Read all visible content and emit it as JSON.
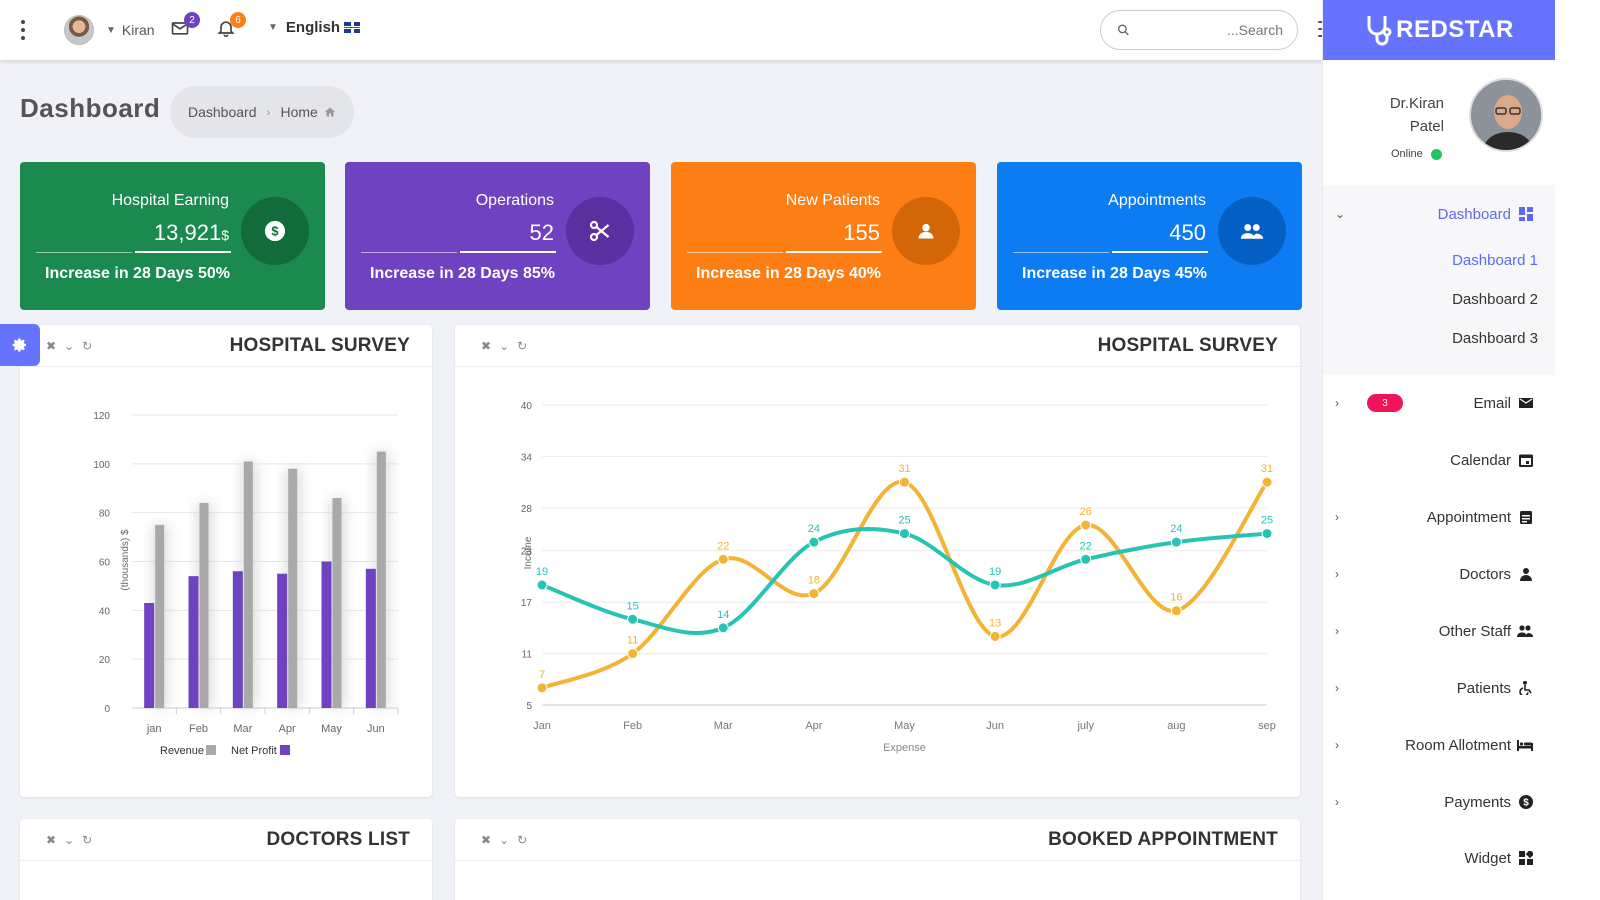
{
  "topbar": {
    "user_name": "Kiran",
    "mail_count": "2",
    "notif_count": "6",
    "language": "English",
    "search_placeholder": "...Search"
  },
  "brand": {
    "name": "REDSTAR",
    "color": "#6673fd"
  },
  "page": {
    "title": "Dashboard",
    "crumb1": "Dashboard",
    "crumb2": "Home"
  },
  "stats": [
    {
      "label": "Hospital Earning",
      "value": "13,921",
      "unit": "$",
      "footer": "Increase in 28 Days 50%",
      "color": "#1a8a4e",
      "icon": "dollar-icon"
    },
    {
      "label": "Operations",
      "value": "52",
      "unit": "",
      "footer": "Increase in 28 Days 85%",
      "color": "#6f42c1",
      "icon": "scissors-icon"
    },
    {
      "label": "New Patients",
      "value": "155",
      "unit": "",
      "footer": "Increase in 28 Days 40%",
      "color": "#fd7e14",
      "icon": "user-icon"
    },
    {
      "label": "Appointments",
      "value": "450",
      "unit": "",
      "footer": "Increase in 28 Days 45%",
      "color": "#0d7cf2",
      "icon": "users-icon"
    }
  ],
  "panels": {
    "survey_bar": "HOSPITAL SURVEY",
    "survey_line": "HOSPITAL SURVEY",
    "doctors": "DOCTORS LIST",
    "appointments": "BOOKED APPOINTMENT"
  },
  "chart_data": [
    {
      "type": "bar",
      "categories": [
        "jan",
        "Feb",
        "Mar",
        "Apr",
        "May",
        "Jun"
      ],
      "series": [
        {
          "name": "Revenue",
          "values": [
            75,
            84,
            101,
            98,
            86,
            105
          ],
          "color": "#a9a9a9"
        },
        {
          "name": "Net Profit",
          "values": [
            43,
            54,
            56,
            55,
            60,
            57
          ],
          "color": "#6f42c1"
        }
      ],
      "ylabel": "(thousands) $",
      "ylim": [
        0,
        120
      ],
      "yticks": [
        0,
        20,
        40,
        60,
        80,
        100,
        120
      ],
      "grid": true,
      "legend": "bottom"
    },
    {
      "type": "line",
      "categories": [
        "Jan",
        "Feb",
        "Mar",
        "Apr",
        "May",
        "Jun",
        "july",
        "aug",
        "sep"
      ],
      "series": [
        {
          "name": "",
          "values": [
            7,
            11,
            22,
            18,
            31,
            13,
            26,
            16,
            31
          ],
          "color": "#f5b335"
        },
        {
          "name": "",
          "values": [
            19,
            15,
            14,
            24,
            25,
            19,
            22,
            24,
            25
          ],
          "color": "#27c4b4"
        }
      ],
      "xlabel": "Expense",
      "ylabel": "Income",
      "ylim": [
        5,
        40
      ],
      "yticks": [
        5,
        11,
        17,
        23,
        28,
        34,
        40
      ],
      "grid": true,
      "data_labels": true
    }
  ],
  "profile": {
    "name_line1": "Dr.Kiran",
    "name_line2": "Patel",
    "status": "Online"
  },
  "sidebar": {
    "dashboard": "Dashboard",
    "sub": [
      "Dashboard 1",
      "Dashboard 2",
      "Dashboard 3"
    ],
    "email_badge": "3",
    "items": [
      "Email",
      "Calendar",
      "Appointment",
      "Doctors",
      "Other Staff",
      "Patients",
      "Room Allotment",
      "Payments",
      "Widget"
    ]
  }
}
